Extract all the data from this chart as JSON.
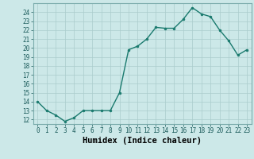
{
  "x": [
    0,
    1,
    2,
    3,
    4,
    5,
    6,
    7,
    8,
    9,
    10,
    11,
    12,
    13,
    14,
    15,
    16,
    17,
    18,
    19,
    20,
    21,
    22,
    23
  ],
  "y": [
    14,
    13,
    12.5,
    11.8,
    12.2,
    13,
    13,
    13,
    13,
    15,
    19.8,
    20.2,
    21,
    22.3,
    22.2,
    22.2,
    23.2,
    24.5,
    23.8,
    23.5,
    22,
    20.8,
    19.2,
    19.8
  ],
  "line_color": "#1a7a6e",
  "marker_color": "#1a7a6e",
  "bg_color": "#cce8e8",
  "grid_color": "#aacccc",
  "xlabel": "Humidex (Indice chaleur)",
  "xlim": [
    -0.5,
    23.5
  ],
  "ylim": [
    11.5,
    25.0
  ],
  "yticks": [
    12,
    13,
    14,
    15,
    16,
    17,
    18,
    19,
    20,
    21,
    22,
    23,
    24
  ],
  "xticks": [
    0,
    1,
    2,
    3,
    4,
    5,
    6,
    7,
    8,
    9,
    10,
    11,
    12,
    13,
    14,
    15,
    16,
    17,
    18,
    19,
    20,
    21,
    22,
    23
  ],
  "tick_fontsize": 5.5,
  "label_fontsize": 7.5
}
